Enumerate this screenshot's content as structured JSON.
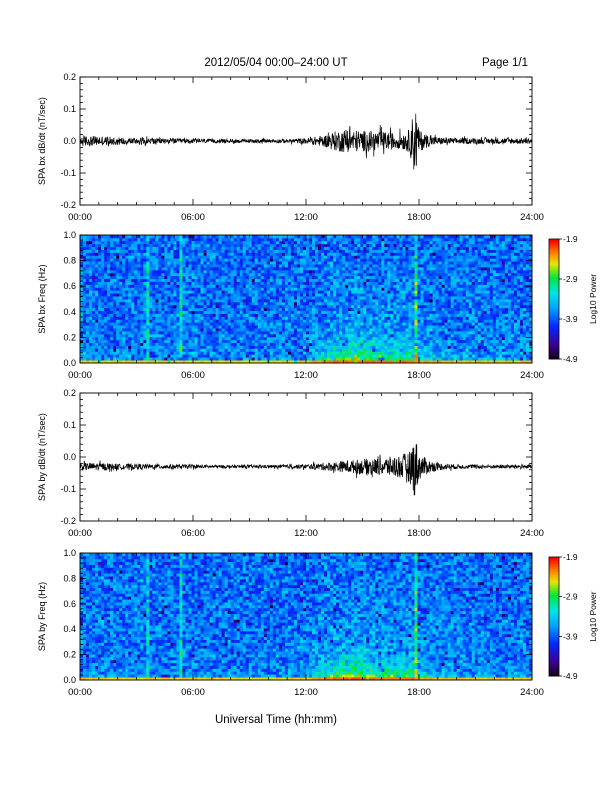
{
  "header": {
    "title": "2012/05/04  00:00–24:00 UT",
    "page": "Page 1/1"
  },
  "xaxis": {
    "label": "Universal Time (hh:mm)",
    "range": [
      0,
      24
    ],
    "ticks": [
      0,
      6,
      12,
      18,
      24
    ],
    "tick_labels": [
      "00:00",
      "06:00",
      "12:00",
      "18:00",
      "24:00"
    ]
  },
  "chart_data": [
    {
      "type": "line",
      "ylabel": "SPA bx dB/dt (nT/sec)",
      "ylim": [
        -0.2,
        0.2
      ],
      "yticks": [
        -0.2,
        -0.1,
        0.0,
        0.1,
        0.2
      ],
      "ytick_labels": [
        "-0.2",
        "-0.1",
        "0.0",
        "0.1",
        "0.2"
      ],
      "color": "#000000",
      "series": [
        {
          "x": [
            0,
            1,
            2,
            3,
            4,
            5,
            6,
            7,
            8,
            9,
            10,
            11,
            12,
            13,
            13.5,
            14,
            15,
            16,
            17,
            17.5,
            17.8,
            18,
            18.5,
            19,
            20,
            21,
            22,
            23,
            24
          ],
          "amplitude": [
            0.03,
            0.025,
            0.02,
            0.018,
            0.015,
            0.013,
            0.012,
            0.01,
            0.01,
            0.01,
            0.01,
            0.01,
            0.015,
            0.03,
            0.05,
            0.06,
            0.055,
            0.05,
            0.04,
            0.06,
            0.2,
            0.06,
            0.03,
            0.02,
            0.015,
            0.015,
            0.015,
            0.015,
            0.015
          ],
          "offset": 0.0
        }
      ]
    },
    {
      "type": "heatmap",
      "ylabel": "SPA bx Freq (Hz)",
      "ylim": [
        0.0,
        1.0
      ],
      "yticks": [
        0.0,
        0.2,
        0.4,
        0.6,
        0.8,
        1.0
      ],
      "ytick_labels": [
        "0.0",
        "0.2",
        "0.4",
        "0.6",
        "0.8",
        "1.0"
      ],
      "colorbar": {
        "label": "Log10 Power",
        "range": [
          -4.9,
          -1.9
        ],
        "ticks": [
          -4.9,
          -3.9,
          -2.9,
          -1.9
        ],
        "tick_labels": [
          "-4.9",
          "-3.9",
          "-2.9",
          "-1.9"
        ]
      },
      "activity": {
        "x": [
          0,
          2,
          4,
          6,
          8,
          10,
          12,
          13.5,
          14.5,
          16,
          17.5,
          18,
          20,
          22,
          24
        ],
        "level": [
          0.1,
          0.06,
          0.05,
          0.08,
          0.04,
          0.04,
          0.1,
          0.5,
          0.6,
          0.45,
          0.5,
          0.3,
          0.15,
          0.12,
          0.1
        ]
      },
      "lines": [
        {
          "x": 3.6,
          "strength": 0.35
        },
        {
          "x": 5.4,
          "strength": 0.45
        },
        {
          "x": 17.8,
          "strength": 0.55
        }
      ]
    },
    {
      "type": "line",
      "ylabel": "SPA by dB/dt (nT/sec)",
      "ylim": [
        -0.2,
        0.2
      ],
      "yticks": [
        -0.2,
        -0.1,
        0.0,
        0.1,
        0.2
      ],
      "ytick_labels": [
        "-0.2",
        "-0.1",
        "0.0",
        "0.1",
        "0.2"
      ],
      "color": "#000000",
      "series": [
        {
          "x": [
            0,
            1,
            2,
            3,
            4,
            5,
            6,
            7,
            8,
            9,
            10,
            11,
            12,
            13,
            14,
            15,
            16,
            17,
            17.5,
            17.8,
            18,
            18.5,
            19,
            20,
            21,
            22,
            23,
            24
          ],
          "amplitude": [
            0.02,
            0.02,
            0.015,
            0.015,
            0.012,
            0.012,
            0.01,
            0.008,
            0.008,
            0.008,
            0.008,
            0.01,
            0.012,
            0.02,
            0.03,
            0.04,
            0.045,
            0.06,
            0.08,
            0.17,
            0.07,
            0.035,
            0.02,
            0.012,
            0.01,
            0.01,
            0.01,
            0.01
          ],
          "offset": -0.03
        }
      ]
    },
    {
      "type": "heatmap",
      "ylabel": "SPA by Freq (Hz)",
      "ylim": [
        0.0,
        1.0
      ],
      "yticks": [
        0.0,
        0.2,
        0.4,
        0.6,
        0.8,
        1.0
      ],
      "ytick_labels": [
        "0.0",
        "0.2",
        "0.4",
        "0.6",
        "0.8",
        "1.0"
      ],
      "colorbar": {
        "label": "Log10 Power",
        "range": [
          -4.9,
          -1.9
        ],
        "ticks": [
          -4.9,
          -3.9,
          -2.9,
          -1.9
        ],
        "tick_labels": [
          "-4.9",
          "-3.9",
          "-2.9",
          "-1.9"
        ]
      },
      "activity": {
        "x": [
          0,
          2,
          4,
          6,
          8,
          10,
          12,
          13.5,
          14.5,
          16,
          17.5,
          18,
          20,
          22,
          24
        ],
        "level": [
          0.12,
          0.08,
          0.06,
          0.1,
          0.04,
          0.04,
          0.1,
          0.55,
          0.65,
          0.5,
          0.55,
          0.3,
          0.15,
          0.12,
          0.1
        ]
      },
      "lines": [
        {
          "x": 3.6,
          "strength": 0.3
        },
        {
          "x": 5.4,
          "strength": 0.5
        },
        {
          "x": 17.8,
          "strength": 0.55
        }
      ]
    }
  ]
}
